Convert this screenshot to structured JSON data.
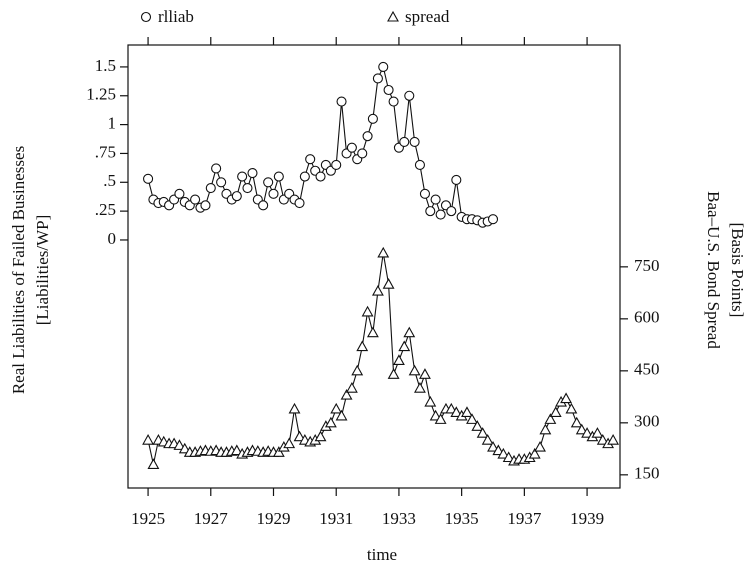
{
  "chart_data": {
    "type": "line",
    "x_label": "time",
    "y_label": [
      "Real Liabilities of Failed Businesses",
      "[Liabilities/WP]"
    ],
    "y2_label": [
      "Baa–U.S. Bond Spread",
      "[Basis Points]"
    ],
    "xlim": [
      1924.36,
      1940.05
    ],
    "xticks": [
      1925,
      1927,
      1929,
      1931,
      1933,
      1935,
      1937,
      1939
    ],
    "ylim": [
      -2.15,
      1.69
    ],
    "yticks": [
      0,
      {
        "value": 0.25,
        "label": ".25"
      },
      {
        "value": 0.5,
        "label": ".5"
      },
      {
        "value": 0.75,
        "label": ".75"
      },
      1,
      1.25,
      1.5
    ],
    "y2lim": [
      112,
      1390
    ],
    "y2ticks": [
      150,
      300,
      450,
      600,
      750
    ],
    "legend": "top",
    "series": [
      {
        "name": "rlliab",
        "marker": "circle",
        "color": "#111111",
        "x": [
          1925,
          1925.17,
          1925.33,
          1925.5,
          1925.67,
          1925.83,
          1926,
          1926.17,
          1926.33,
          1926.5,
          1926.67,
          1926.83,
          1927,
          1927.17,
          1927.33,
          1927.5,
          1927.67,
          1927.83,
          1928,
          1928.17,
          1928.33,
          1928.5,
          1928.67,
          1928.83,
          1929,
          1929.17,
          1929.33,
          1929.5,
          1929.67,
          1929.83,
          1930,
          1930.17,
          1930.33,
          1930.5,
          1930.67,
          1930.83,
          1931,
          1931.17,
          1931.33,
          1931.5,
          1931.67,
          1931.83,
          1932,
          1932.17,
          1932.33,
          1932.5,
          1932.67,
          1932.83,
          1933,
          1933.17,
          1933.33,
          1933.5,
          1933.67,
          1933.83,
          1934,
          1934.17,
          1934.33,
          1934.5,
          1934.67,
          1934.83,
          1935,
          1935.17,
          1935.33,
          1935.5,
          1935.67,
          1935.83,
          1936
        ],
        "values": [
          0.53,
          0.35,
          0.32,
          0.33,
          0.3,
          0.35,
          0.4,
          0.33,
          0.3,
          0.35,
          0.28,
          0.3,
          0.45,
          0.62,
          0.5,
          0.4,
          0.35,
          0.38,
          0.55,
          0.45,
          0.58,
          0.35,
          0.3,
          0.5,
          0.4,
          0.55,
          0.35,
          0.4,
          0.35,
          0.32,
          0.55,
          0.7,
          0.6,
          0.55,
          0.65,
          0.6,
          0.65,
          1.2,
          0.75,
          0.8,
          0.7,
          0.75,
          0.9,
          1.05,
          1.4,
          1.5,
          1.3,
          1.2,
          0.8,
          0.85,
          1.25,
          0.85,
          0.65,
          0.4,
          0.25,
          0.35,
          0.22,
          0.3,
          0.25,
          0.52,
          0.2,
          0.18,
          0.18,
          0.17,
          0.15,
          0.16,
          0.18
        ]
      },
      {
        "name": "spread",
        "marker": "triangle",
        "color": "#111111",
        "axis": "y2",
        "x": [
          1925,
          1925.17,
          1925.33,
          1925.5,
          1925.67,
          1925.83,
          1926,
          1926.17,
          1926.33,
          1926.5,
          1926.67,
          1926.83,
          1927,
          1927.17,
          1927.33,
          1927.5,
          1927.67,
          1927.83,
          1928,
          1928.17,
          1928.33,
          1928.5,
          1928.67,
          1928.83,
          1929,
          1929.17,
          1929.33,
          1929.5,
          1929.67,
          1929.83,
          1930,
          1930.17,
          1930.33,
          1930.5,
          1930.67,
          1930.83,
          1931,
          1931.17,
          1931.33,
          1931.5,
          1931.67,
          1931.83,
          1932,
          1932.17,
          1932.33,
          1932.5,
          1932.67,
          1932.83,
          1933,
          1933.17,
          1933.33,
          1933.5,
          1933.67,
          1933.83,
          1934,
          1934.17,
          1934.33,
          1934.5,
          1934.67,
          1934.83,
          1935,
          1935.17,
          1935.33,
          1935.5,
          1935.67,
          1935.83,
          1936,
          1936.17,
          1936.33,
          1936.5,
          1936.67,
          1936.83,
          1937,
          1937.17,
          1937.33,
          1937.5,
          1937.67,
          1937.83,
          1938,
          1938.17,
          1938.33,
          1938.5,
          1938.67,
          1938.83,
          1939,
          1939.17,
          1939.33,
          1939.5,
          1939.67,
          1939.83
        ],
        "values": [
          250,
          180,
          250,
          245,
          240,
          240,
          235,
          225,
          215,
          215,
          218,
          220,
          218,
          220,
          215,
          215,
          218,
          220,
          210,
          215,
          220,
          218,
          215,
          218,
          215,
          215,
          230,
          240,
          340,
          260,
          250,
          245,
          250,
          260,
          290,
          300,
          340,
          320,
          380,
          400,
          450,
          520,
          620,
          560,
          680,
          790,
          700,
          440,
          480,
          520,
          560,
          450,
          400,
          440,
          360,
          320,
          310,
          340,
          340,
          330,
          320,
          330,
          310,
          290,
          270,
          250,
          230,
          220,
          210,
          200,
          190,
          195,
          195,
          200,
          210,
          230,
          280,
          310,
          330,
          360,
          370,
          340,
          300,
          280,
          270,
          260,
          270,
          250,
          240,
          250
        ]
      }
    ]
  }
}
